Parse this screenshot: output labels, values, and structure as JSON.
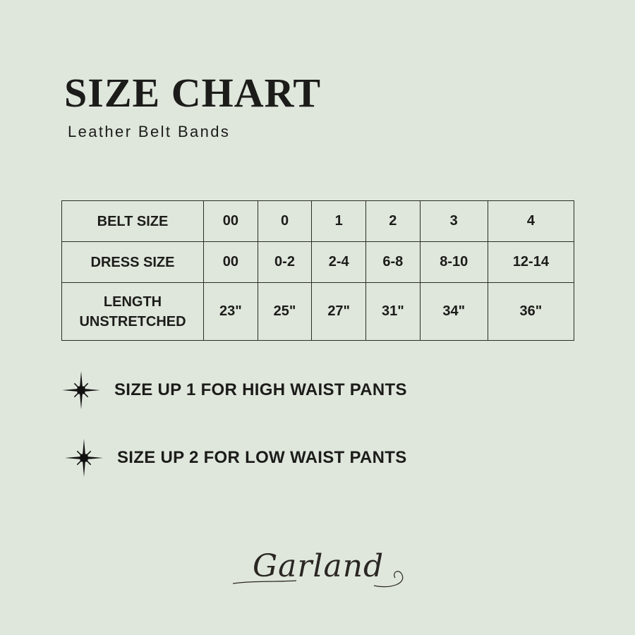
{
  "header": {
    "title": "SIZE CHART",
    "subtitle": "Leather Belt Bands"
  },
  "table": {
    "rows": [
      {
        "label": "BELT SIZE",
        "values": [
          "00",
          "0",
          "1",
          "2",
          "3",
          "4"
        ]
      },
      {
        "label": "DRESS SIZE",
        "values": [
          "00",
          "0-2",
          "2-4",
          "6-8",
          "8-10",
          "12-14"
        ]
      },
      {
        "label": "LENGTH UNSTRETCHED",
        "values": [
          "23\"",
          "25\"",
          "27\"",
          "31\"",
          "34\"",
          "36\""
        ]
      }
    ]
  },
  "notes": [
    {
      "icon": "sparkle-star-icon",
      "text": "SIZE UP 1 FOR HIGH WAIST PANTS"
    },
    {
      "icon": "sparkle-star-icon",
      "text": "SIZE UP 2 FOR LOW WAIST PANTS"
    }
  ],
  "logo": {
    "text": "Garland"
  },
  "colors": {
    "background": "#dfe7dc",
    "text": "#1c1c1a"
  }
}
